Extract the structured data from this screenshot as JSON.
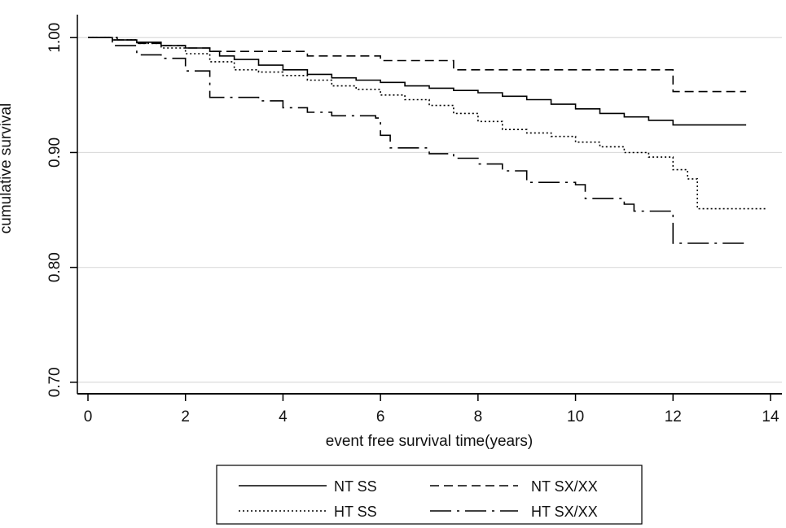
{
  "chart_data": {
    "type": "line",
    "title": "",
    "xlabel": "event free survival time(years)",
    "ylabel": "cumulative survival",
    "xlim": [
      0,
      14
    ],
    "ylim": [
      0.69,
      1.02
    ],
    "x_ticks": [
      0,
      2,
      4,
      6,
      8,
      10,
      12,
      14
    ],
    "x_tick_labels": [
      "0",
      "2",
      "4",
      "6",
      "8",
      "10",
      "12",
      "14"
    ],
    "y_ticks": [
      0.7,
      0.8,
      0.9,
      1.0
    ],
    "y_tick_labels": [
      "0.70",
      "0.80",
      "0.90",
      "1.00"
    ],
    "grid": "horizontal",
    "legend_position": "bottom",
    "series": [
      {
        "name": "NT SS",
        "line_style": "solid",
        "color": "#000000",
        "points": [
          [
            0,
            1.0
          ],
          [
            0.5,
            0.998
          ],
          [
            1.0,
            0.996
          ],
          [
            1.5,
            0.993
          ],
          [
            2.0,
            0.991
          ],
          [
            2.5,
            0.988
          ],
          [
            2.7,
            0.984
          ],
          [
            3.0,
            0.981
          ],
          [
            3.5,
            0.976
          ],
          [
            4.0,
            0.972
          ],
          [
            4.5,
            0.968
          ],
          [
            5.0,
            0.965
          ],
          [
            5.5,
            0.963
          ],
          [
            6.0,
            0.961
          ],
          [
            6.5,
            0.958
          ],
          [
            7.0,
            0.956
          ],
          [
            7.5,
            0.954
          ],
          [
            8.0,
            0.952
          ],
          [
            8.5,
            0.949
          ],
          [
            9.0,
            0.946
          ],
          [
            9.5,
            0.942
          ],
          [
            10.0,
            0.938
          ],
          [
            10.5,
            0.934
          ],
          [
            11.0,
            0.931
          ],
          [
            11.5,
            0.928
          ],
          [
            12.0,
            0.924
          ],
          [
            13.5,
            0.924
          ]
        ]
      },
      {
        "name": "NT SX/XX",
        "line_style": "dashed",
        "color": "#000000",
        "points": [
          [
            0,
            1.0
          ],
          [
            0.6,
            0.998
          ],
          [
            1.0,
            0.995
          ],
          [
            1.5,
            0.993
          ],
          [
            2.0,
            0.991
          ],
          [
            2.5,
            0.988
          ],
          [
            4.5,
            0.984
          ],
          [
            6.0,
            0.98
          ],
          [
            7.5,
            0.972
          ],
          [
            12.0,
            0.972
          ],
          [
            12.0,
            0.953
          ],
          [
            13.5,
            0.953
          ]
        ]
      },
      {
        "name": "HT SS",
        "line_style": "dotted",
        "color": "#000000",
        "points": [
          [
            0,
            1.0
          ],
          [
            0.5,
            0.998
          ],
          [
            1.0,
            0.995
          ],
          [
            1.5,
            0.991
          ],
          [
            2.0,
            0.986
          ],
          [
            2.5,
            0.979
          ],
          [
            3.0,
            0.972
          ],
          [
            3.5,
            0.97
          ],
          [
            4.0,
            0.967
          ],
          [
            4.5,
            0.963
          ],
          [
            5.0,
            0.958
          ],
          [
            5.5,
            0.955
          ],
          [
            6.0,
            0.95
          ],
          [
            6.5,
            0.946
          ],
          [
            7.0,
            0.941
          ],
          [
            7.5,
            0.934
          ],
          [
            8.0,
            0.927
          ],
          [
            8.5,
            0.92
          ],
          [
            9.0,
            0.917
          ],
          [
            9.5,
            0.914
          ],
          [
            10.0,
            0.909
          ],
          [
            10.5,
            0.905
          ],
          [
            11.0,
            0.9
          ],
          [
            11.5,
            0.896
          ],
          [
            12.0,
            0.885
          ],
          [
            12.3,
            0.877
          ],
          [
            12.5,
            0.851
          ],
          [
            13.9,
            0.851
          ]
        ]
      },
      {
        "name": "HT SX/XX",
        "line_style": "longdash-dot",
        "color": "#000000",
        "points": [
          [
            0,
            1.0
          ],
          [
            0.5,
            0.993
          ],
          [
            1.0,
            0.985
          ],
          [
            1.5,
            0.982
          ],
          [
            2.0,
            0.971
          ],
          [
            2.5,
            0.958
          ],
          [
            2.5,
            0.948
          ],
          [
            3.5,
            0.945
          ],
          [
            4.0,
            0.939
          ],
          [
            4.5,
            0.935
          ],
          [
            5.0,
            0.932
          ],
          [
            5.9,
            0.93
          ],
          [
            6.0,
            0.915
          ],
          [
            6.2,
            0.904
          ],
          [
            7.0,
            0.899
          ],
          [
            7.5,
            0.895
          ],
          [
            8.0,
            0.89
          ],
          [
            8.5,
            0.884
          ],
          [
            9.0,
            0.874
          ],
          [
            10.0,
            0.872
          ],
          [
            10.2,
            0.86
          ],
          [
            11.0,
            0.855
          ],
          [
            11.2,
            0.849
          ],
          [
            12.0,
            0.849
          ],
          [
            12.0,
            0.821
          ],
          [
            13.5,
            0.821
          ]
        ]
      }
    ]
  }
}
